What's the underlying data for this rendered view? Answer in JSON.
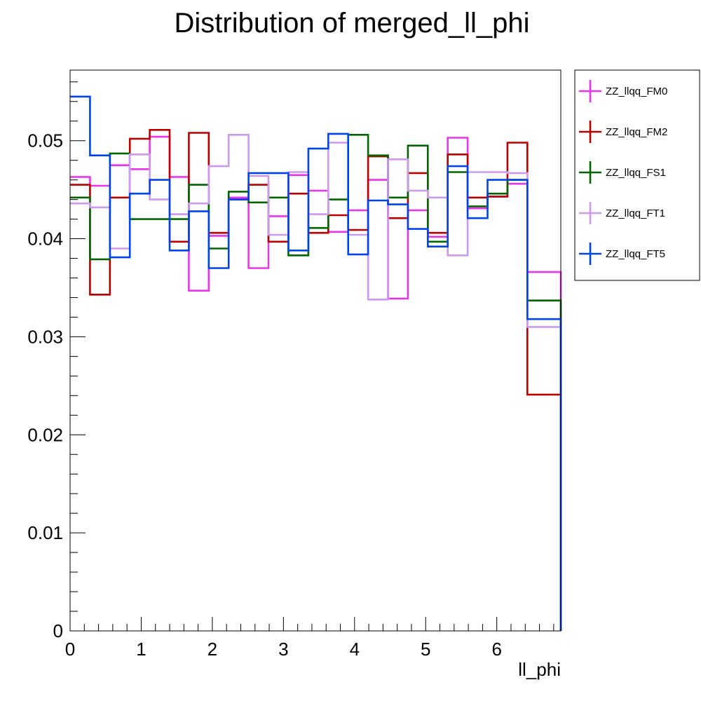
{
  "chart_data": {
    "type": "histogram-step",
    "title": "Distribution of merged_ll_phi",
    "xlabel": "ll_phi",
    "ylabel": "",
    "xlim": [
      0,
      6.9
    ],
    "ylim": [
      0,
      0.0572
    ],
    "x_ticks": [
      0,
      1,
      2,
      3,
      4,
      5,
      6
    ],
    "x_tick_labels": [
      "0",
      "1",
      "2",
      "3",
      "4",
      "5",
      "6"
    ],
    "y_ticks": [
      0,
      0.01,
      0.02,
      0.03,
      0.04,
      0.05
    ],
    "y_tick_labels": [
      "0",
      "0.01",
      "0.02",
      "0.03",
      "0.04",
      "0.05"
    ],
    "grid": false,
    "legend_position": "right",
    "bin_edges": [
      0,
      0.28,
      0.56,
      0.84,
      1.12,
      1.4,
      1.67,
      1.95,
      2.23,
      2.51,
      2.79,
      3.07,
      3.35,
      3.63,
      3.91,
      4.19,
      4.47,
      4.75,
      5.03,
      5.31,
      5.59,
      5.87,
      6.15,
      6.43,
      6.9
    ],
    "series": [
      {
        "name": "ZZ_llqq_FM0",
        "color": "#ee33ee",
        "values": [
          0.0463,
          0.0454,
          0.0475,
          0.0471,
          0.0504,
          0.0463,
          0.0347,
          0.0403,
          0.0442,
          0.037,
          0.0423,
          0.0465,
          0.0449,
          0.0407,
          0.0429,
          0.046,
          0.0339,
          0.0429,
          0.0402,
          0.0503,
          0.0431,
          0.0443,
          0.0456,
          0.0366,
          0.0
        ]
      },
      {
        "name": "ZZ_llqq_FM2",
        "color": "#bb0000",
        "values": [
          0.0455,
          0.0343,
          0.0442,
          0.0502,
          0.0511,
          0.0397,
          0.0508,
          0.0406,
          0.044,
          0.0455,
          0.0397,
          0.0446,
          0.0406,
          0.0424,
          0.0409,
          0.0484,
          0.0421,
          0.0467,
          0.0406,
          0.0486,
          0.0442,
          0.0443,
          0.0498,
          0.0241,
          0.0
        ]
      },
      {
        "name": "ZZ_llqq_FS1",
        "color": "#006600",
        "values": [
          0.0442,
          0.0379,
          0.0487,
          0.042,
          0.042,
          0.042,
          0.0455,
          0.039,
          0.0448,
          0.0437,
          0.0442,
          0.0383,
          0.0411,
          0.044,
          0.0506,
          0.0485,
          0.0442,
          0.0495,
          0.0397,
          0.0468,
          0.0433,
          0.0446,
          0.046,
          0.0337,
          0.0
        ]
      },
      {
        "name": "ZZ_llqq_FT1",
        "color": "#cc99ee",
        "values": [
          0.0436,
          0.0432,
          0.039,
          0.0486,
          0.044,
          0.0425,
          0.0436,
          0.0474,
          0.0506,
          0.0464,
          0.0404,
          0.0468,
          0.0425,
          0.0498,
          0.0404,
          0.0338,
          0.0481,
          0.0449,
          0.0442,
          0.0383,
          0.0468,
          0.0468,
          0.0467,
          0.031,
          0.0
        ]
      },
      {
        "name": "ZZ_llqq_FT5",
        "color": "#0044ee",
        "values": [
          0.0545,
          0.0485,
          0.0381,
          0.0446,
          0.046,
          0.0388,
          0.0428,
          0.037,
          0.044,
          0.0467,
          0.0467,
          0.0388,
          0.0492,
          0.0507,
          0.0384,
          0.0439,
          0.0435,
          0.041,
          0.0392,
          0.0474,
          0.0421,
          0.046,
          0.046,
          0.0318,
          0.0
        ]
      }
    ]
  }
}
